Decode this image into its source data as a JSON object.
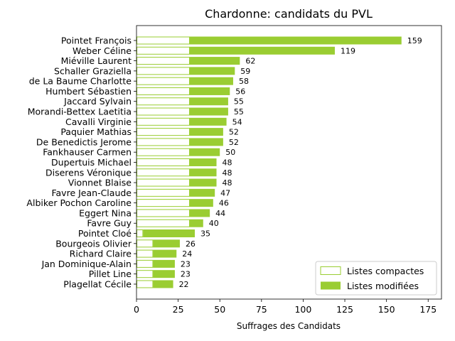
{
  "chart_data": {
    "type": "bar",
    "orientation": "horizontal",
    "stacked": true,
    "title": "Chardonne: candidats du PVL",
    "xlabel": "Suffrages des Candidats",
    "ylabel": "",
    "xlim": [
      0,
      183
    ],
    "xticks": [
      0,
      25,
      50,
      75,
      100,
      125,
      150,
      175
    ],
    "categories": [
      "Pointet François",
      "Weber Céline",
      "Miéville Laurent",
      "Schaller Graziella",
      "de La Baume Charlotte",
      "Humbert Sébastien",
      "Jaccard Sylvain",
      "Morandi-Bettex Laetitia",
      "Cavalli Virginie",
      "Paquier Mathias",
      "De Benedictis Jerome",
      "Fankhauser Carmen",
      "Dupertuis Michael",
      "Diserens Véronique",
      "Vionnet Blaise",
      "Favre Jean-Claude",
      "Albiker Pochon Caroline",
      "Eggert Nina",
      "Favre Guy",
      "Pointet Cloé",
      "Bourgeois Olivier",
      "Richard Claire",
      "Jan Dominique-Alain",
      "Pillet Line",
      "Plagellat Cécile"
    ],
    "series": [
      {
        "name": "Listes compactes",
        "color": "#9acd32",
        "fill": "none",
        "values": [
          32,
          32,
          32,
          32,
          32,
          32,
          32,
          32,
          32,
          32,
          32,
          32,
          32,
          32,
          32,
          32,
          32,
          32,
          32,
          4,
          10,
          10,
          10,
          10,
          10
        ]
      },
      {
        "name": "Listes modifiées",
        "color": "#9acd32",
        "fill": "#9acd32",
        "values": [
          127,
          87,
          30,
          27,
          26,
          24,
          23,
          23,
          22,
          20,
          20,
          18,
          16,
          16,
          16,
          15,
          14,
          12,
          8,
          31,
          16,
          14,
          13,
          13,
          12
        ]
      }
    ],
    "totals": [
      159,
      119,
      62,
      59,
      58,
      56,
      55,
      55,
      54,
      52,
      52,
      50,
      48,
      48,
      48,
      47,
      46,
      44,
      40,
      35,
      26,
      24,
      23,
      23,
      22
    ],
    "legend_position": "lower-right",
    "grid": false
  }
}
